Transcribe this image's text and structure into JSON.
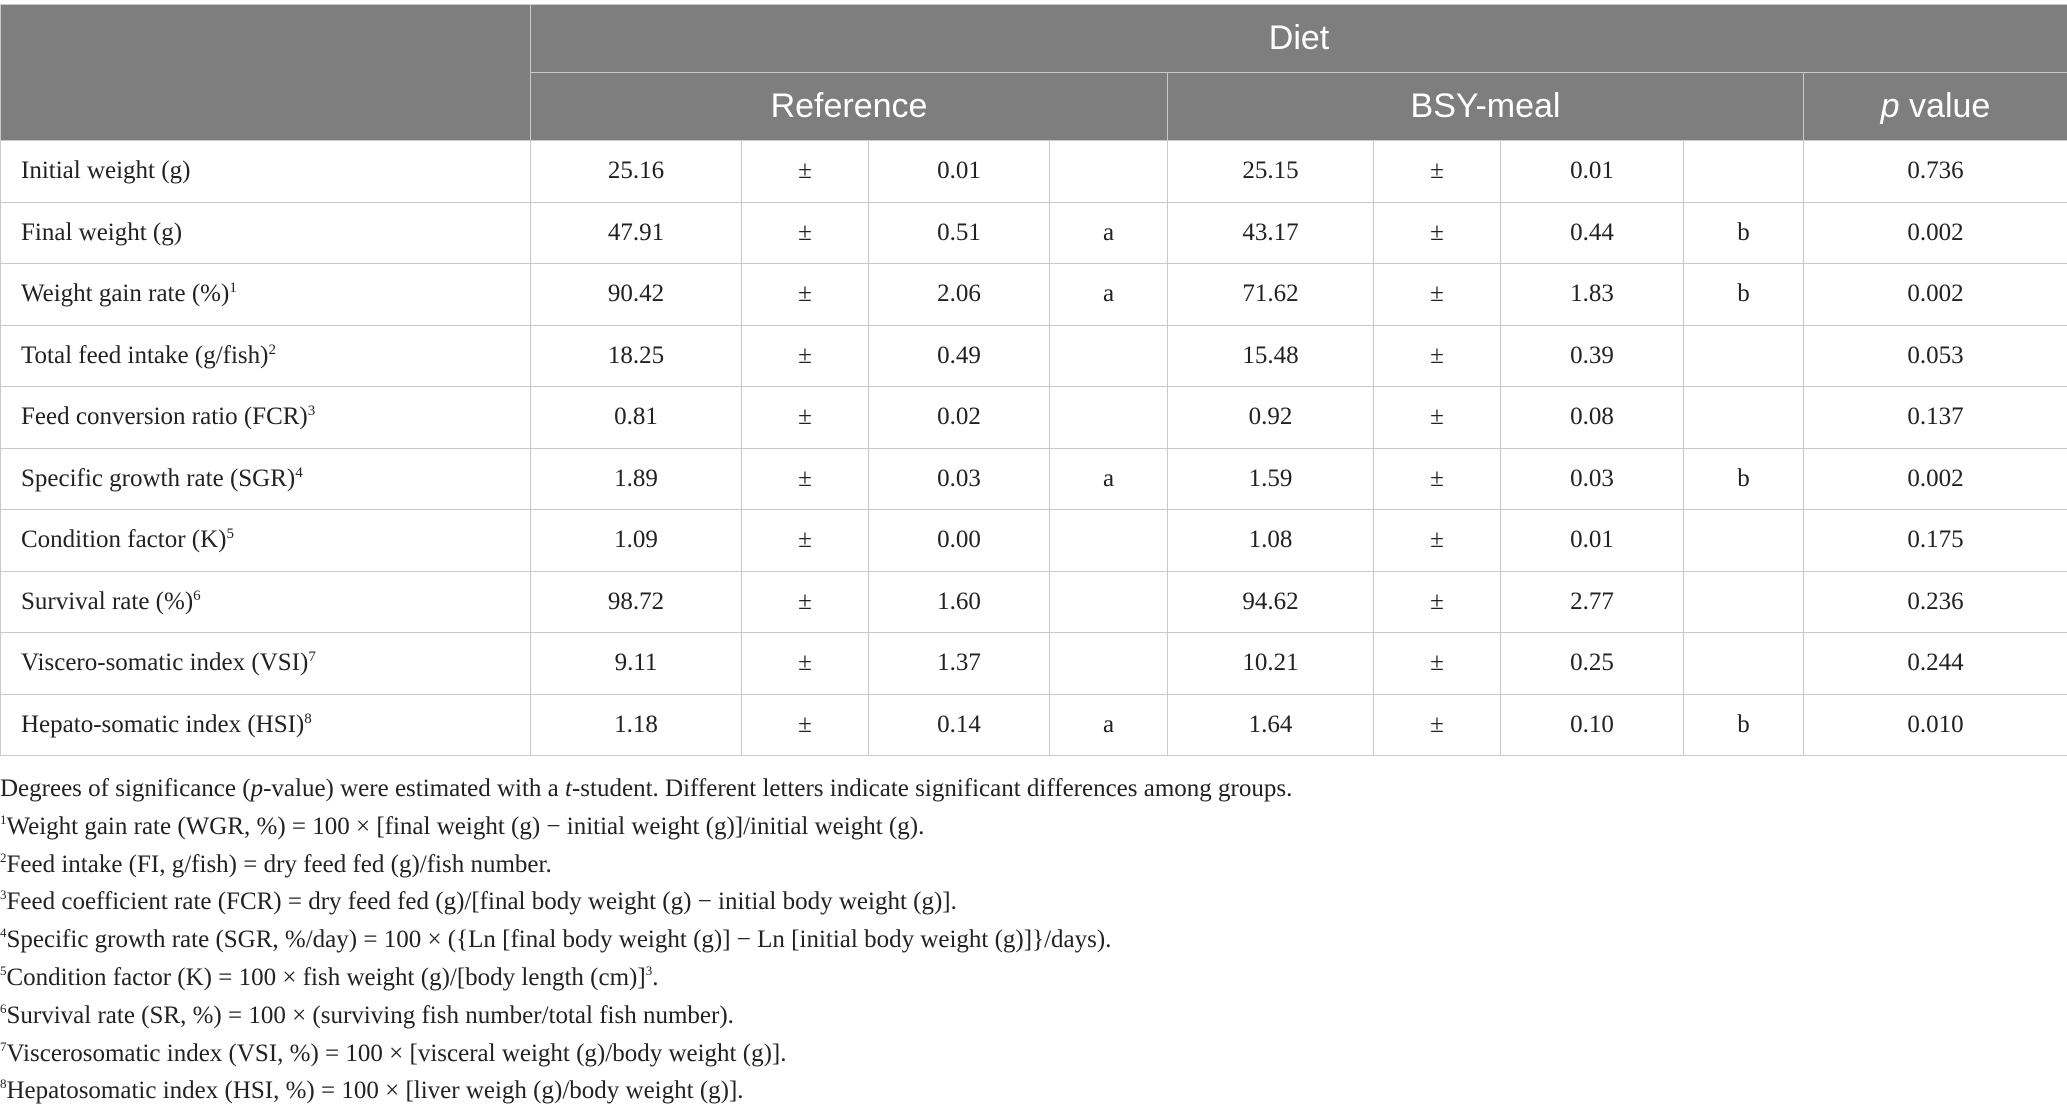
{
  "header": {
    "diet": "Diet",
    "reference": "Reference",
    "bsy_meal": "BSY-meal",
    "p_value_p": "p",
    "p_value_rest": " value"
  },
  "rows": [
    {
      "label": "Initial weight (g)",
      "sup": "",
      "ref_mean": "25.16",
      "ref_pm": "±",
      "ref_sd": "0.01",
      "ref_letter": "",
      "bsy_mean": "25.15",
      "bsy_pm": "±",
      "bsy_sd": "0.01",
      "bsy_letter": "",
      "p": "0.736"
    },
    {
      "label": "Final weight (g)",
      "sup": "",
      "ref_mean": "47.91",
      "ref_pm": "±",
      "ref_sd": "0.51",
      "ref_letter": "a",
      "bsy_mean": "43.17",
      "bsy_pm": "±",
      "bsy_sd": "0.44",
      "bsy_letter": "b",
      "p": "0.002"
    },
    {
      "label": "Weight gain rate (%)",
      "sup": "1",
      "ref_mean": "90.42",
      "ref_pm": "±",
      "ref_sd": "2.06",
      "ref_letter": "a",
      "bsy_mean": "71.62",
      "bsy_pm": "±",
      "bsy_sd": "1.83",
      "bsy_letter": "b",
      "p": "0.002"
    },
    {
      "label": "Total feed intake (g/fish)",
      "sup": "2",
      "ref_mean": "18.25",
      "ref_pm": "±",
      "ref_sd": "0.49",
      "ref_letter": "",
      "bsy_mean": "15.48",
      "bsy_pm": "±",
      "bsy_sd": "0.39",
      "bsy_letter": "",
      "p": "0.053"
    },
    {
      "label": "Feed conversion ratio (FCR)",
      "sup": "3",
      "ref_mean": "0.81",
      "ref_pm": "±",
      "ref_sd": "0.02",
      "ref_letter": "",
      "bsy_mean": "0.92",
      "bsy_pm": "±",
      "bsy_sd": "0.08",
      "bsy_letter": "",
      "p": "0.137"
    },
    {
      "label": "Specific growth rate (SGR)",
      "sup": "4",
      "ref_mean": "1.89",
      "ref_pm": "±",
      "ref_sd": "0.03",
      "ref_letter": "a",
      "bsy_mean": "1.59",
      "bsy_pm": "±",
      "bsy_sd": "0.03",
      "bsy_letter": "b",
      "p": "0.002"
    },
    {
      "label": "Condition factor (K)",
      "sup": "5",
      "ref_mean": "1.09",
      "ref_pm": "±",
      "ref_sd": "0.00",
      "ref_letter": "",
      "bsy_mean": "1.08",
      "bsy_pm": "±",
      "bsy_sd": "0.01",
      "bsy_letter": "",
      "p": "0.175"
    },
    {
      "label": "Survival rate (%)",
      "sup": "6",
      "ref_mean": "98.72",
      "ref_pm": "±",
      "ref_sd": "1.60",
      "ref_letter": "",
      "bsy_mean": "94.62",
      "bsy_pm": "±",
      "bsy_sd": "2.77",
      "bsy_letter": "",
      "p": "0.236"
    },
    {
      "label": "Viscero-somatic index (VSI)",
      "sup": "7",
      "ref_mean": "9.11",
      "ref_pm": "±",
      "ref_sd": "1.37",
      "ref_letter": "",
      "bsy_mean": "10.21",
      "bsy_pm": "±",
      "bsy_sd": "0.25",
      "bsy_letter": "",
      "p": "0.244"
    },
    {
      "label": "Hepato-somatic index (HSI)",
      "sup": "8",
      "ref_mean": "1.18",
      "ref_pm": "±",
      "ref_sd": "0.14",
      "ref_letter": "a",
      "bsy_mean": "1.64",
      "bsy_pm": "±",
      "bsy_sd": "0.10",
      "bsy_letter": "b",
      "p": "0.010"
    }
  ],
  "footnotes": {
    "significance": {
      "t1": "Degrees of significance (",
      "t2": "p",
      "t3": "-value) were estimated with a ",
      "t4": "t",
      "t5": "-student. Different letters indicate significant differences among groups."
    },
    "items": [
      {
        "sup": "1",
        "text": "Weight gain rate (WGR, %) = 100 × [final weight (g) − initial weight (g)]/initial weight (g)."
      },
      {
        "sup": "2",
        "text": "Feed intake (FI, g/fish) = dry feed fed (g)/fish number."
      },
      {
        "sup": "3",
        "text": "Feed coefficient rate (FCR) = dry feed fed (g)/[final body weight (g) − initial body weight (g)]."
      },
      {
        "sup": "4",
        "text": "Specific growth rate (SGR, %/day) = 100 × ({Ln [final body weight (g)] − Ln [initial body weight (g)]}/days)."
      },
      {
        "sup": "5",
        "text": "Condition factor (K) = 100 × fish weight (g)/[body length (cm)]",
        "tail_sup": "3",
        "tail": "."
      },
      {
        "sup": "6",
        "text": "Survival rate (SR, %) = 100 × (surviving fish number/total fish number)."
      },
      {
        "sup": "7",
        "text": "Viscerosomatic index (VSI, %) = 100 × [visceral weight (g)/body weight (g)]."
      },
      {
        "sup": "8",
        "text": "Hepatosomatic index (HSI, %) = 100 × [liver weigh (g)/body weight (g)]."
      }
    ]
  }
}
